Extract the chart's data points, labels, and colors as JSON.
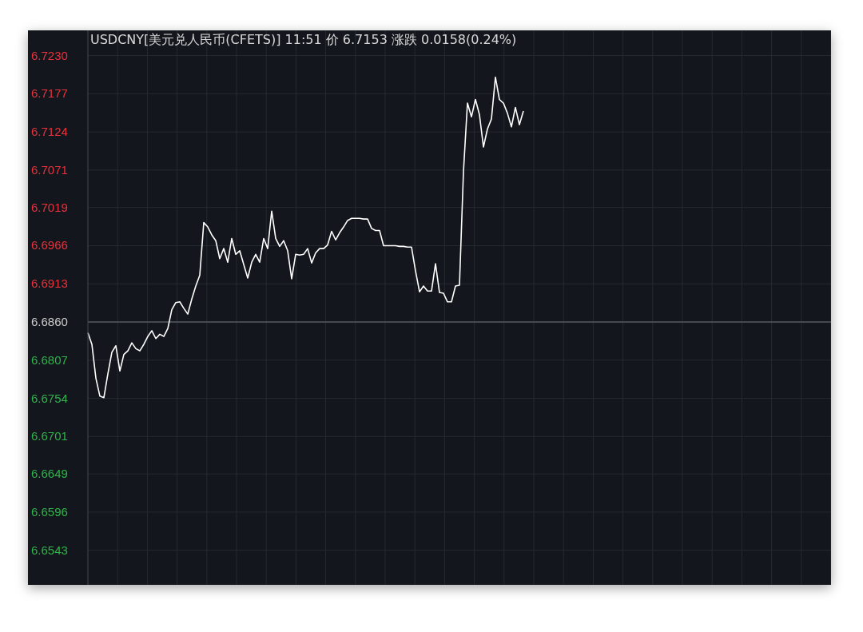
{
  "chart_data": {
    "type": "line",
    "title": "USDCNY[美元兑人民币(CFETS)] 11:51 价 6.7153 涨跌 0.0158(0.24%)",
    "categories": [
      null,
      null,
      null,
      null,
      null,
      null,
      null,
      null,
      null,
      null,
      null,
      null,
      null,
      null,
      null,
      null,
      null,
      null,
      null,
      null,
      null,
      null,
      null,
      null,
      null,
      null,
      null,
      null,
      null,
      null,
      null,
      null,
      null,
      null,
      null,
      null,
      null,
      null,
      null,
      null,
      null,
      null,
      null,
      null,
      null,
      null,
      null,
      null,
      null,
      null,
      null,
      null,
      null,
      null,
      null,
      null,
      null,
      null,
      null,
      null,
      null,
      null,
      null,
      null,
      null,
      null,
      null,
      null,
      null,
      null,
      null,
      null,
      null,
      null,
      null,
      null,
      null,
      null,
      null,
      null,
      null,
      null,
      null,
      null,
      null,
      null,
      null,
      null,
      null,
      null,
      null,
      null,
      null,
      null,
      null,
      null,
      null,
      null,
      null,
      null,
      null,
      null,
      null,
      null,
      null,
      null,
      null,
      null,
      null,
      null,
      null,
      null,
      null,
      null,
      null,
      null,
      null,
      null,
      null,
      null,
      null,
      null,
      null,
      null,
      null,
      null,
      null,
      null,
      null,
      null,
      null,
      null,
      null,
      null,
      null,
      null,
      null,
      null,
      null,
      null,
      null,
      null,
      null,
      null,
      null,
      null,
      null,
      null,
      null,
      null,
      null,
      null,
      null,
      null,
      null,
      null,
      null,
      null,
      null,
      null,
      null,
      null,
      null,
      null,
      null,
      null,
      null,
      null,
      null,
      null,
      null,
      null,
      null,
      null,
      null,
      null,
      null,
      null,
      null,
      null,
      null,
      null,
      null,
      null,
      null,
      null,
      null
    ],
    "series": [
      {
        "color": "#ffffff",
        "values": [
          6.6845,
          6.6829,
          6.6782,
          6.6757,
          6.6755,
          6.6788,
          6.6818,
          6.6827,
          6.6792,
          6.6815,
          6.682,
          6.6831,
          6.6823,
          6.682,
          6.6829,
          6.684,
          6.6848,
          6.6837,
          6.6843,
          6.684,
          6.6851,
          6.6877,
          6.6887,
          6.6888,
          6.6879,
          6.6871,
          6.6892,
          6.691,
          6.6925,
          6.6998,
          6.6992,
          6.6981,
          6.6973,
          6.6948,
          6.6962,
          6.6943,
          6.6976,
          6.6954,
          6.6959,
          6.694,
          6.6921,
          6.6943,
          6.6954,
          6.6943,
          6.6976,
          6.6962,
          6.7014,
          6.6976,
          6.6965,
          6.6973,
          6.6959,
          6.692,
          6.6954,
          6.6953,
          6.6954,
          6.6962,
          6.6942,
          6.6956,
          6.6962,
          6.6962,
          6.6967,
          6.6986,
          6.6974,
          6.6984,
          6.6992,
          6.7001,
          6.7004,
          6.7004,
          6.7004,
          6.7003,
          6.7003,
          6.699,
          6.6987,
          6.6987,
          6.6966,
          6.6966,
          6.6966,
          6.6966,
          6.6965,
          6.6965,
          6.6964,
          6.6964,
          6.6931,
          6.6902,
          6.691,
          6.6903,
          6.6903,
          6.6941,
          6.6901,
          6.69,
          6.6888,
          6.6888,
          6.691,
          6.6911,
          6.7069,
          6.7164,
          6.7145,
          6.7169,
          6.7148,
          6.7103,
          6.7128,
          6.7142,
          6.72,
          6.7169,
          6.7164,
          6.715,
          6.7131,
          6.7158,
          6.7134,
          6.7153,
          null,
          null,
          null,
          null,
          null,
          null,
          null,
          null,
          null,
          null,
          null,
          null,
          null,
          null,
          null,
          null,
          null,
          null,
          null,
          null,
          null,
          null,
          null,
          null,
          null,
          null,
          null,
          null,
          null,
          null,
          null,
          null,
          null,
          null,
          null,
          null,
          null,
          null,
          null,
          null,
          null,
          null,
          null,
          null,
          null,
          null,
          null,
          null,
          null,
          null,
          null,
          null,
          null,
          null,
          null,
          null,
          null,
          null,
          null,
          null,
          null,
          null,
          null,
          null,
          null,
          null,
          null,
          null,
          null,
          null,
          null,
          null,
          null,
          null,
          null,
          null,
          null
        ]
      }
    ],
    "ylim": [
      6.6495,
      6.7265
    ],
    "yticks": [
      6.6543,
      6.6596,
      6.6649,
      6.6701,
      6.6754,
      6.6807,
      {
        "value": 6.686,
        "label": "6.6860"
      },
      6.6913,
      6.6966,
      6.7019,
      6.7071,
      6.7124,
      6.7177,
      {
        "value": 6.723,
        "label": "6.7230"
      }
    ],
    "ref_lines": [
      {
        "axis": "y",
        "value": 6.686,
        "color": "#55585f"
      }
    ],
    "grid": true,
    "marker": "none",
    "line_style": "solid",
    "tick_labels": "y"
  }
}
